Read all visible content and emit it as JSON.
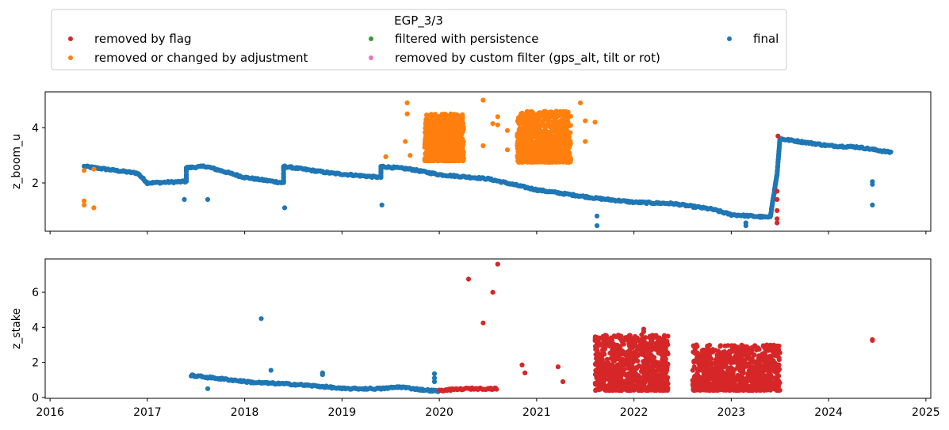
{
  "legend": {
    "title": "EGP_3/3",
    "entries": [
      {
        "label": "removed by flag",
        "color": "#d62728"
      },
      {
        "label": "filtered with persistence",
        "color": "#2ca02c"
      },
      {
        "label": "final",
        "color": "#1f77b4"
      },
      {
        "label": "removed or changed by adjustment",
        "color": "#ff7f0e"
      },
      {
        "label": "removed by custom filter (gps_alt, tilt or rot)",
        "color": "#e377c2"
      }
    ]
  },
  "chart_data": [
    {
      "type": "scatter",
      "ylabel": "z_boom_u",
      "xlim": [
        2015.95,
        2025.05
      ],
      "ylim": [
        0.25,
        5.3
      ],
      "yticks": [
        2,
        4
      ],
      "x_ticks": [
        2016,
        2017,
        2018,
        2019,
        2020,
        2021,
        2022,
        2023,
        2024,
        2025
      ],
      "x_tick_labels_visible": false,
      "series": [
        {
          "name": "final",
          "color": "#1f77b4",
          "trend": [
            [
              2016.35,
              2.6
            ],
            [
              2016.9,
              2.35
            ],
            [
              2017.0,
              2.0
            ],
            [
              2017.4,
              2.05
            ],
            [
              2017.4,
              2.55
            ],
            [
              2017.6,
              2.6
            ],
            [
              2018.0,
              2.2
            ],
            [
              2018.4,
              2.0
            ],
            [
              2018.4,
              2.6
            ],
            [
              2018.9,
              2.35
            ],
            [
              2019.4,
              2.2
            ],
            [
              2019.4,
              2.6
            ],
            [
              2019.7,
              2.5
            ],
            [
              2020.0,
              2.3
            ],
            [
              2020.5,
              2.15
            ],
            [
              2021.0,
              1.75
            ],
            [
              2021.2,
              1.65
            ],
            [
              2021.6,
              1.45
            ],
            [
              2022.0,
              1.3
            ],
            [
              2022.4,
              1.25
            ],
            [
              2022.8,
              1.05
            ],
            [
              2023.0,
              0.85
            ],
            [
              2023.4,
              0.75
            ],
            [
              2023.47,
              2.3
            ],
            [
              2023.5,
              3.6
            ],
            [
              2023.8,
              3.45
            ],
            [
              2024.0,
              3.35
            ],
            [
              2024.3,
              3.3
            ],
            [
              2024.65,
              3.1
            ]
          ],
          "outliers": [
            [
              2017.38,
              1.4
            ],
            [
              2017.62,
              1.4
            ],
            [
              2018.41,
              1.1
            ],
            [
              2019.41,
              1.2
            ],
            [
              2021.62,
              0.8
            ],
            [
              2021.62,
              0.45
            ],
            [
              2023.15,
              0.55
            ],
            [
              2023.15,
              0.45
            ],
            [
              2024.45,
              2.05
            ],
            [
              2024.45,
              1.95
            ],
            [
              2024.45,
              1.2
            ]
          ]
        },
        {
          "name": "removed or changed by adjustment",
          "color": "#ff7f0e",
          "clusters": [
            {
              "x": [
                2019.85,
                2020.25
              ],
              "y": [
                2.8,
                4.5
              ]
            },
            {
              "x": [
                2020.8,
                2021.35
              ],
              "y": [
                2.75,
                4.6
              ]
            }
          ],
          "outliers": [
            [
              2016.35,
              2.45
            ],
            [
              2016.35,
              1.35
            ],
            [
              2016.35,
              1.2
            ],
            [
              2016.45,
              1.1
            ],
            [
              2016.45,
              2.5
            ],
            [
              2019.45,
              2.95
            ],
            [
              2019.67,
              4.9
            ],
            [
              2019.67,
              4.5
            ],
            [
              2019.65,
              3.5
            ],
            [
              2019.7,
              3.0
            ],
            [
              2020.45,
              5.0
            ],
            [
              2020.45,
              3.35
            ],
            [
              2020.55,
              4.15
            ],
            [
              2020.6,
              4.4
            ],
            [
              2020.6,
              4.1
            ],
            [
              2020.7,
              3.9
            ],
            [
              2020.7,
              3.2
            ],
            [
              2021.45,
              4.9
            ],
            [
              2021.5,
              4.25
            ],
            [
              2021.6,
              4.2
            ],
            [
              2021.5,
              3.5
            ]
          ]
        },
        {
          "name": "removed by flag",
          "color": "#d62728",
          "points": [
            [
              2023.47,
              1.7
            ],
            [
              2023.47,
              1.4
            ],
            [
              2023.47,
              1.0
            ],
            [
              2023.47,
              0.7
            ],
            [
              2023.47,
              0.55
            ],
            [
              2023.48,
              3.7
            ]
          ]
        }
      ]
    },
    {
      "type": "scatter",
      "ylabel": "z_stake",
      "xlim": [
        2015.95,
        2025.05
      ],
      "ylim": [
        -0.05,
        7.9
      ],
      "yticks": [
        0,
        2,
        4,
        6
      ],
      "x_ticks": [
        2016,
        2017,
        2018,
        2019,
        2020,
        2021,
        2022,
        2023,
        2024,
        2025
      ],
      "x_tick_labels": [
        "2016",
        "2017",
        "2018",
        "2019",
        "2020",
        "2021",
        "2022",
        "2023",
        "2024",
        "2025"
      ],
      "series": [
        {
          "name": "final",
          "color": "#1f77b4",
          "trend": [
            [
              2017.45,
              1.25
            ],
            [
              2017.7,
              1.1
            ],
            [
              2018.1,
              0.85
            ],
            [
              2018.5,
              0.75
            ],
            [
              2018.85,
              0.6
            ],
            [
              2019.0,
              0.5
            ],
            [
              2019.4,
              0.5
            ],
            [
              2019.6,
              0.6
            ],
            [
              2019.8,
              0.45
            ],
            [
              2020.0,
              0.35
            ]
          ],
          "outliers": [
            [
              2017.62,
              0.5
            ],
            [
              2018.17,
              4.5
            ],
            [
              2018.27,
              1.55
            ],
            [
              2018.8,
              1.4
            ],
            [
              2018.8,
              1.3
            ],
            [
              2019.95,
              1.35
            ],
            [
              2019.95,
              1.1
            ],
            [
              2019.95,
              0.9
            ]
          ]
        },
        {
          "name": "removed by flag",
          "color": "#d62728",
          "trend": [
            [
              2020.0,
              0.4
            ],
            [
              2020.3,
              0.5
            ],
            [
              2020.6,
              0.5
            ]
          ],
          "clusters": [
            {
              "x": [
                2021.6,
                2022.35
              ],
              "y": [
                0.4,
                3.6
              ]
            },
            {
              "x": [
                2022.6,
                2023.5
              ],
              "y": [
                0.4,
                3.0
              ]
            }
          ],
          "outliers": [
            [
              2020.3,
              6.75
            ],
            [
              2020.45,
              4.25
            ],
            [
              2020.55,
              6.0
            ],
            [
              2020.6,
              7.6
            ],
            [
              2020.85,
              1.85
            ],
            [
              2020.88,
              1.4
            ],
            [
              2021.22,
              1.75
            ],
            [
              2021.27,
              0.9
            ],
            [
              2022.1,
              3.9
            ],
            [
              2022.1,
              3.75
            ],
            [
              2023.35,
              2.6
            ],
            [
              2024.45,
              3.25
            ],
            [
              2024.45,
              3.3
            ]
          ]
        }
      ]
    }
  ]
}
